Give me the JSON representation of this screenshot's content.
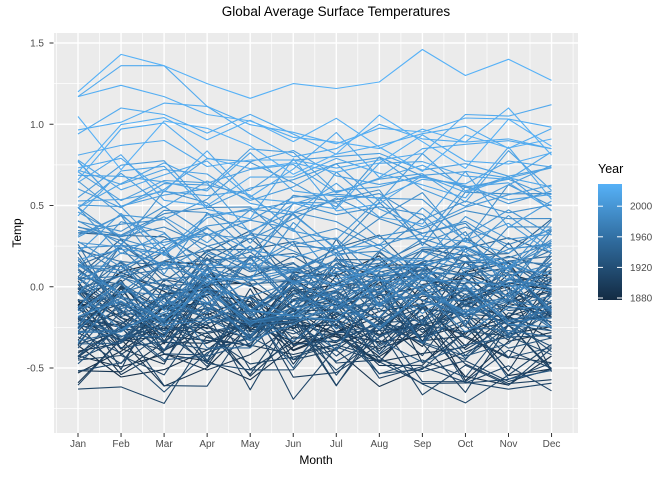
{
  "chart_data": {
    "type": "line",
    "title": "Global Average Surface Temperatures",
    "xlabel": "Month",
    "ylabel": "Temp",
    "categories": [
      "Jan",
      "Feb",
      "Mar",
      "Apr",
      "May",
      "Jun",
      "Jul",
      "Aug",
      "Sep",
      "Oct",
      "Nov",
      "Dec"
    ],
    "y_tick_labels": [
      "1.5",
      "1.0",
      "0.5",
      "0.0",
      "-0.5"
    ],
    "y_tick_values": [
      1.5,
      1.0,
      0.5,
      0.0,
      -0.5
    ],
    "ylim": [
      -0.9,
      1.56
    ],
    "grid": "major-and-minor-white-on-gray",
    "panel_bg": "#EBEBEB",
    "grid_color": "#FFFFFF",
    "tick_text_color": "#4D4D4D",
    "tick_mark_color": "#333333",
    "legend": {
      "title": "Year",
      "position": "right",
      "tick_labels": [
        "2000",
        "1960",
        "1920",
        "1880"
      ],
      "tick_years": [
        2000,
        1960,
        1920,
        1880
      ],
      "color_low": "#132B43",
      "color_mid": "#2F6A9C",
      "color_high": "#56B1F7"
    },
    "year_start": 1880,
    "year_end": 2023,
    "annual_anomaly": [
      -0.16,
      -0.07,
      -0.1,
      -0.16,
      -0.28,
      -0.32,
      -0.31,
      -0.35,
      -0.17,
      -0.1,
      -0.35,
      -0.22,
      -0.27,
      -0.31,
      -0.3,
      -0.22,
      -0.11,
      -0.11,
      -0.26,
      -0.17,
      -0.07,
      -0.15,
      -0.27,
      -0.36,
      -0.46,
      -0.26,
      -0.22,
      -0.38,
      -0.42,
      -0.48,
      -0.43,
      -0.44,
      -0.35,
      -0.34,
      -0.15,
      -0.13,
      -0.35,
      -0.45,
      -0.29,
      -0.27,
      -0.27,
      -0.18,
      -0.28,
      -0.26,
      -0.27,
      -0.22,
      -0.1,
      -0.21,
      -0.2,
      -0.36,
      -0.16,
      -0.09,
      -0.16,
      -0.28,
      -0.12,
      -0.2,
      -0.15,
      -0.03,
      0.0,
      -0.02,
      0.13,
      0.18,
      0.07,
      0.09,
      0.2,
      0.09,
      -0.07,
      -0.03,
      -0.11,
      -0.11,
      -0.17,
      -0.07,
      0.01,
      0.08,
      -0.13,
      -0.14,
      -0.19,
      0.05,
      0.06,
      0.03,
      -0.03,
      0.06,
      0.03,
      0.05,
      -0.2,
      -0.11,
      -0.06,
      -0.02,
      -0.08,
      0.05,
      0.03,
      -0.08,
      0.01,
      0.16,
      -0.07,
      -0.01,
      -0.1,
      0.18,
      0.07,
      0.16,
      0.26,
      0.32,
      0.14,
      0.31,
      0.16,
      0.12,
      0.18,
      0.33,
      0.41,
      0.27,
      0.45,
      0.41,
      0.22,
      0.23,
      0.32,
      0.45,
      0.33,
      0.46,
      0.61,
      0.38,
      0.39,
      0.54,
      0.63,
      0.62,
      0.53,
      0.68,
      0.64,
      0.66,
      0.54,
      0.66,
      0.72,
      0.61,
      0.65,
      0.68,
      0.75,
      0.9,
      1.02,
      0.92,
      0.85,
      0.98,
      1.01,
      0.85,
      0.89,
      1.17
    ],
    "monthly_overrides": {
      "2015": [
        0.81,
        0.87,
        0.9,
        0.74,
        0.78,
        0.78,
        0.73,
        0.78,
        0.82,
        1.06,
        1.05,
        1.12
      ],
      "2016": [
        1.17,
        1.36,
        1.36,
        1.11,
        0.94,
        0.8,
        0.85,
        1.0,
        0.91,
        0.89,
        0.91,
        0.85
      ],
      "2020": [
        1.17,
        1.24,
        1.17,
        1.06,
        1.02,
        0.92,
        0.89,
        0.85,
        0.97,
        0.89,
        1.1,
        0.81
      ],
      "2023": [
        1.2,
        1.43,
        1.36,
        1.25,
        1.16,
        1.25,
        1.22,
        1.26,
        1.46,
        1.3,
        1.4,
        1.27
      ]
    }
  }
}
